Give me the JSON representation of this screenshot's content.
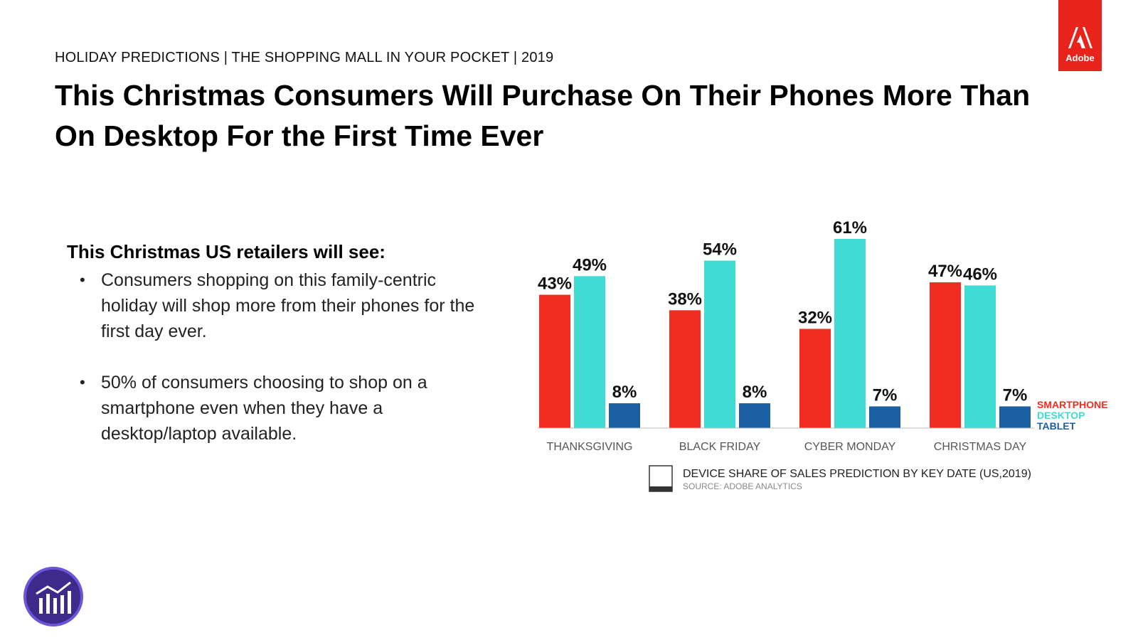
{
  "header": {
    "kicker": "HOLIDAY PREDICTIONS | THE SHOPPING MALL IN YOUR POCKET | 2019",
    "title": "This Christmas Consumers Will Purchase On Their Phones More Than On Desktop For the First Time Ever"
  },
  "brand": {
    "name": "Adobe",
    "color": "#e8231b"
  },
  "left": {
    "lead": "This Christmas US retailers will see:",
    "bullets": [
      "Consumers shopping on this family-centric holiday will shop more from their phones for the first day ever.",
      "50% of consumers choosing to shop on a smartphone even when they have a desktop/laptop available."
    ]
  },
  "chart_data": {
    "type": "bar",
    "categories": [
      "THANKSGIVING",
      "BLACK FRIDAY",
      "CYBER MONDAY",
      "CHRISTMAS DAY"
    ],
    "series": [
      {
        "name": "SMARTPHONE",
        "values": [
          43,
          38,
          32,
          47
        ],
        "color": "#f02d20"
      },
      {
        "name": "DESKTOP",
        "values": [
          49,
          54,
          61,
          46
        ],
        "color": "#40dbd2"
      },
      {
        "name": "TABLET",
        "values": [
          8,
          8,
          7,
          7
        ],
        "color": "#1b5fa3"
      }
    ],
    "value_suffix": "%",
    "ylim": [
      0,
      61
    ],
    "title": "DEVICE SHARE OF SALES PREDICTION BY KEY DATE (US,2019)",
    "source": "SOURCE: ADOBE ANALYTICS",
    "legend_placement": "right",
    "grid": false
  },
  "footer_icon": {
    "name": "analytics-icon",
    "color": "#3d2a8a"
  }
}
